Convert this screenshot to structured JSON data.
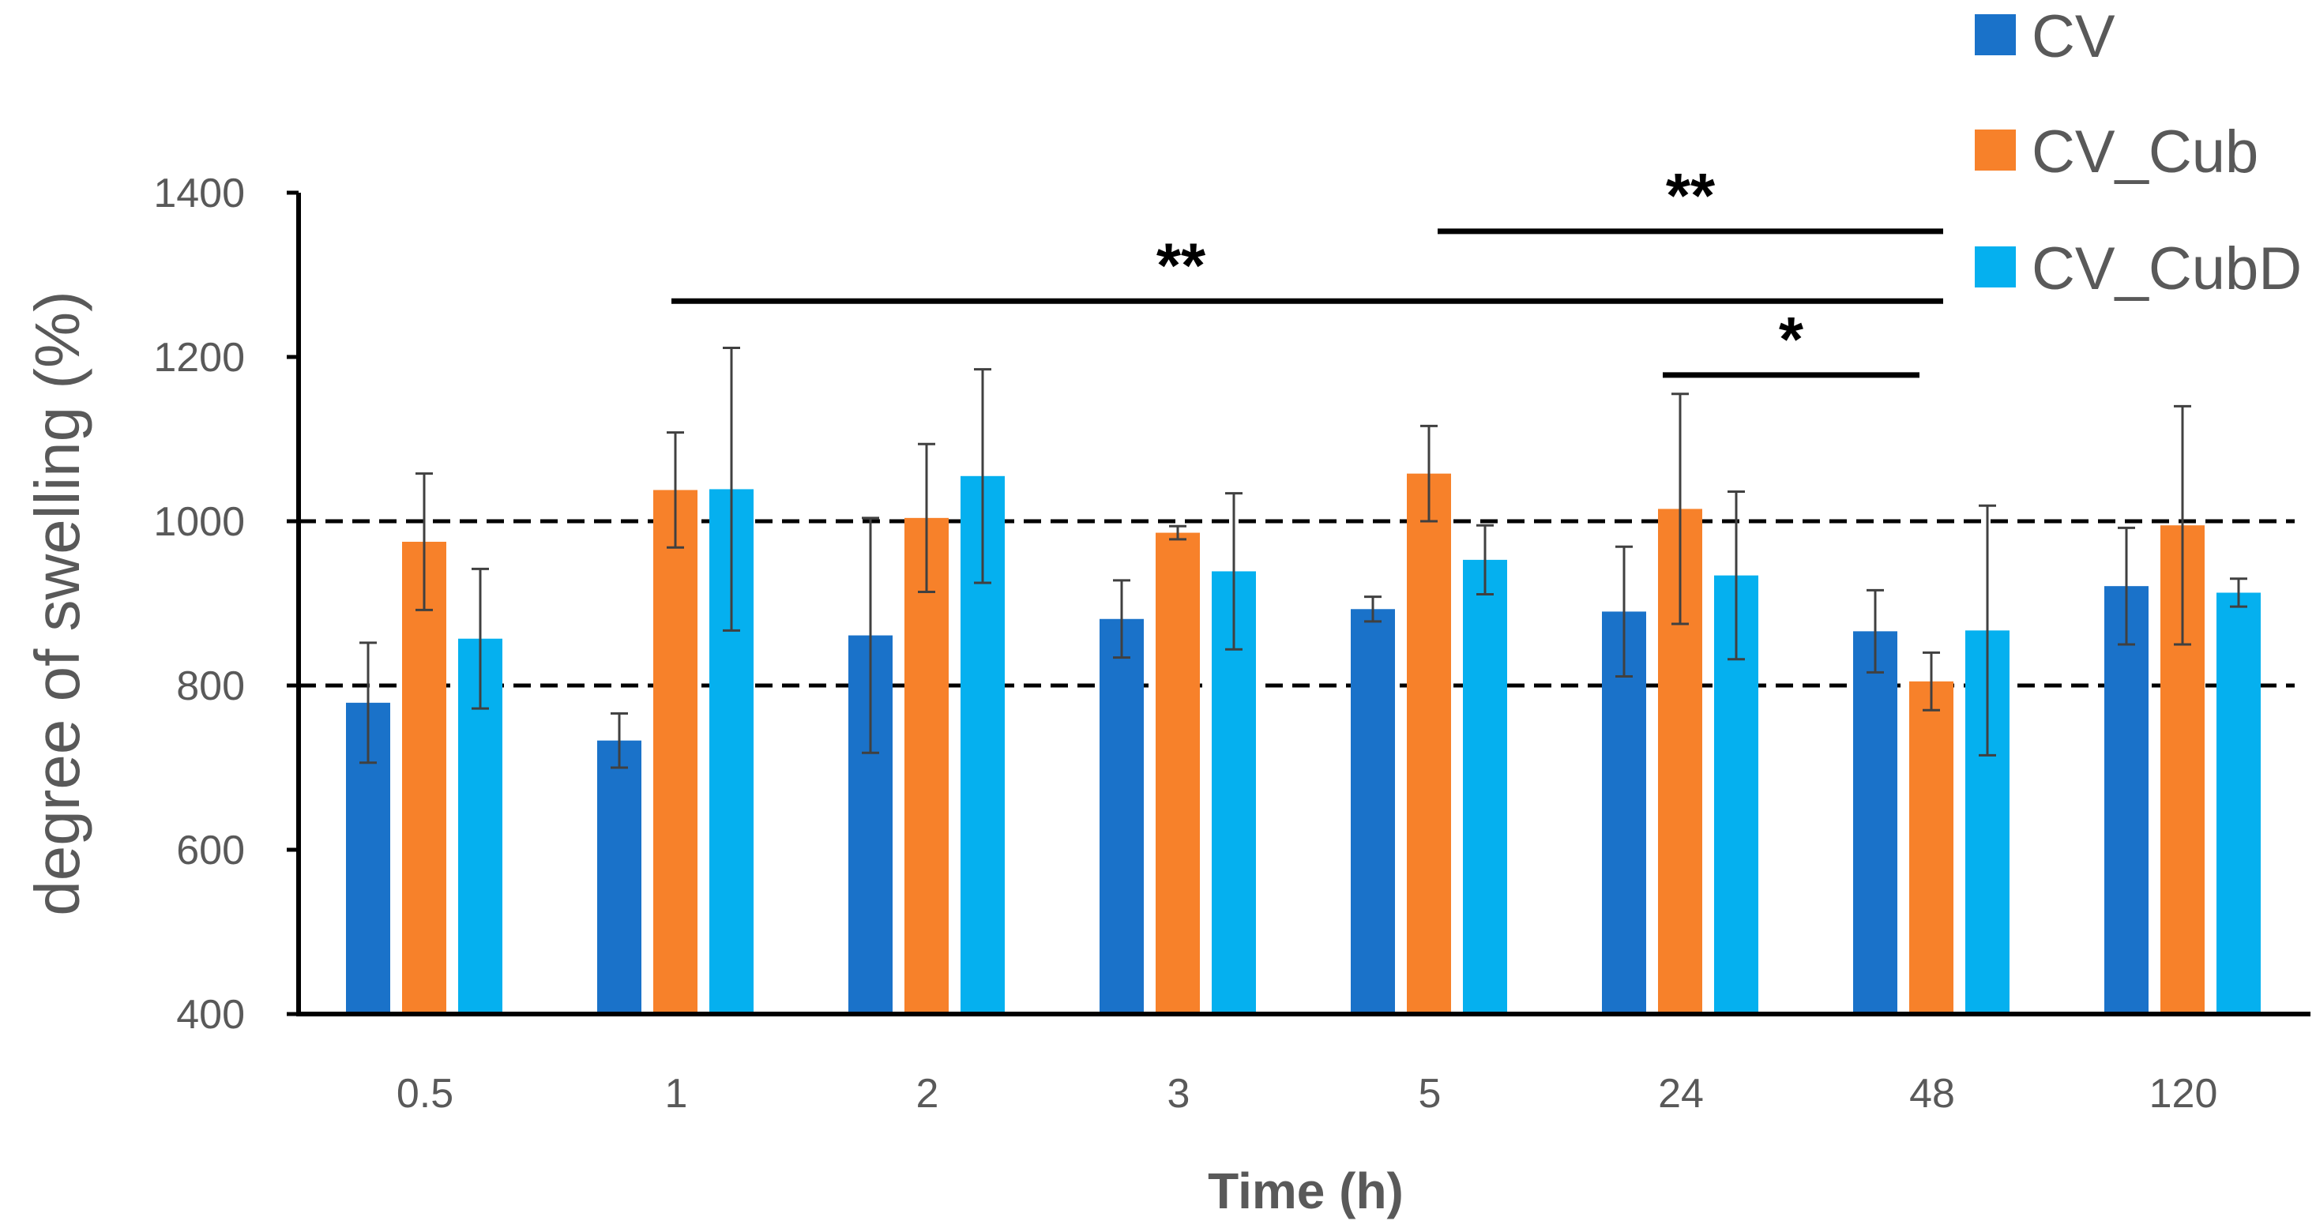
{
  "chart_data": {
    "type": "bar",
    "title": "",
    "xlabel": "Time (h)",
    "ylabel": "degree of swelling (%)",
    "ylim": [
      400,
      1400
    ],
    "yticks": [
      "400",
      "600",
      "800",
      "1000",
      "1200",
      "1400"
    ],
    "categories": [
      "0.5",
      "1",
      "2",
      "3",
      "5",
      "24",
      "48",
      "120"
    ],
    "series": [
      {
        "name": "CV",
        "color": "#1a72c9",
        "values": [
          779,
          733,
          861,
          881,
          893,
          890,
          866,
          921
        ],
        "errors": [
          73,
          33,
          143,
          47,
          15,
          79,
          50,
          71
        ]
      },
      {
        "name": "CV_Cub",
        "color": "#f7812a",
        "values": [
          975,
          1038,
          1004,
          986,
          1058,
          1015,
          805,
          995
        ],
        "errors": [
          83,
          70,
          90,
          8,
          58,
          140,
          35,
          145
        ]
      },
      {
        "name": "CV_CubD",
        "color": "#05b0ef",
        "values": [
          857,
          1039,
          1055,
          939,
          953,
          934,
          867,
          913
        ],
        "errors": [
          85,
          172,
          130,
          95,
          42,
          102,
          152,
          17
        ]
      }
    ],
    "reference_lines": [
      1000,
      800
    ],
    "significance": [
      {
        "label": "**",
        "from": "5",
        "to": "48",
        "level": 1353
      },
      {
        "label": "**",
        "from": "1",
        "to": "48",
        "level": 1268
      },
      {
        "label": "*",
        "from": "24",
        "to": "48",
        "level": 1178
      }
    ],
    "legend_position": "top-right"
  }
}
